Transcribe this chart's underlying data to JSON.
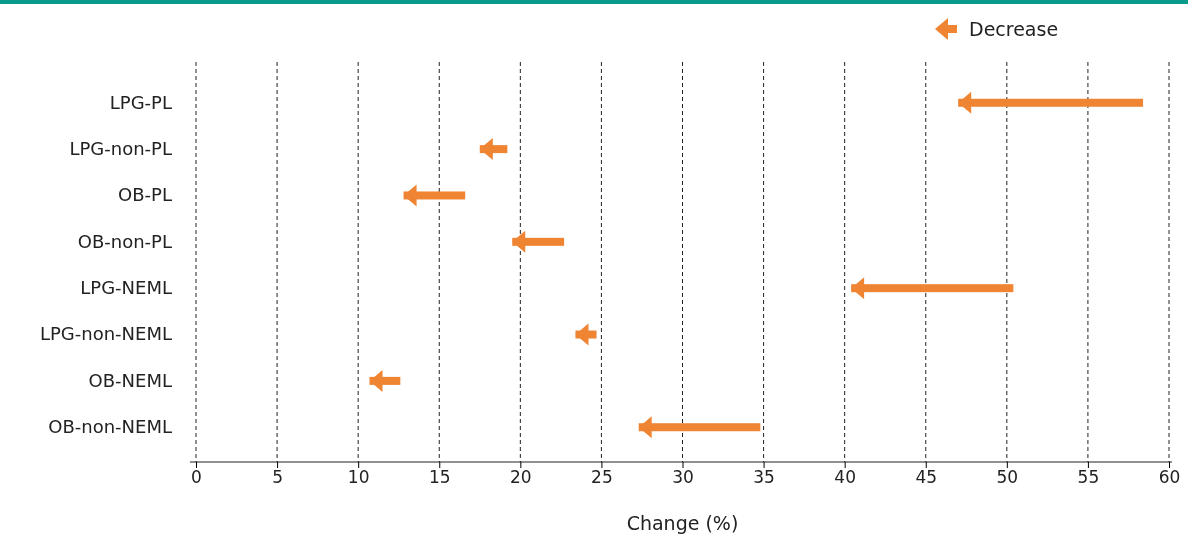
{
  "chart_data": {
    "type": "bar",
    "orientation": "horizontal",
    "xlabel": "Change (%)",
    "categories": [
      "LPG-PL",
      "LPG-non-PL",
      "OB-PL",
      "OB-non-PL",
      "LPG-NEML",
      "LPG-non-NEML",
      "OB-NEML",
      "OB-non-NEML"
    ],
    "series": [
      {
        "name": "Decrease",
        "color": "#ef8433",
        "base": [
          47.0,
          17.5,
          12.8,
          19.5,
          40.4,
          23.4,
          10.7,
          27.3
        ],
        "values": [
          11.4,
          1.7,
          3.8,
          3.2,
          10.0,
          1.3,
          1.9,
          7.5
        ]
      }
    ],
    "xlim": [
      0,
      60
    ],
    "xticks": [
      0,
      5,
      10,
      15,
      20,
      25,
      30,
      35,
      40,
      45,
      50,
      55,
      60
    ],
    "grid": "x",
    "legend": "top right"
  }
}
